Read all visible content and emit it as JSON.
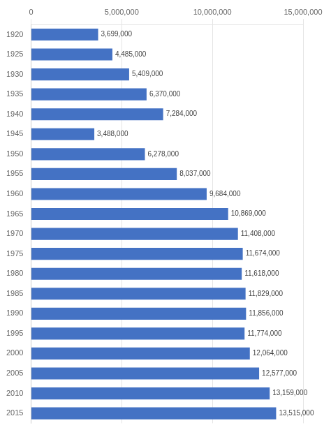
{
  "chart_data": {
    "type": "bar",
    "orientation": "horizontal",
    "categories": [
      "1920",
      "1925",
      "1930",
      "1935",
      "1940",
      "1945",
      "1950",
      "1955",
      "1960",
      "1965",
      "1970",
      "1975",
      "1980",
      "1985",
      "1990",
      "1995",
      "2000",
      "2005",
      "2010",
      "2015"
    ],
    "values": [
      3699000,
      4485000,
      5409000,
      6370000,
      7284000,
      3488000,
      6278000,
      8037000,
      9684000,
      10869000,
      11408000,
      11674000,
      11618000,
      11829000,
      11856000,
      11774000,
      12064000,
      12577000,
      13159000,
      13515000
    ],
    "value_labels": [
      "3,699,000",
      "4,485,000",
      "5,409,000",
      "6,370,000",
      "7,284,000",
      "3,488,000",
      "6,278,000",
      "8,037,000",
      "9,684,000",
      "10,869,000",
      "11,408,000",
      "11,674,000",
      "11,618,000",
      "11,829,000",
      "11,856,000",
      "11,774,000",
      "12,064,000",
      "12,577,000",
      "13,159,000",
      "13,515,000"
    ],
    "data_labels": true,
    "color": "#4472C4",
    "xlim": [
      0,
      15000000
    ],
    "xticks": [
      0,
      {
        "value": 5000000,
        "label": "5,000,000"
      },
      {
        "value": 10000000,
        "label": "10,000,000"
      },
      {
        "value": 15000000,
        "label": "15,000,000"
      }
    ],
    "grid": true
  }
}
